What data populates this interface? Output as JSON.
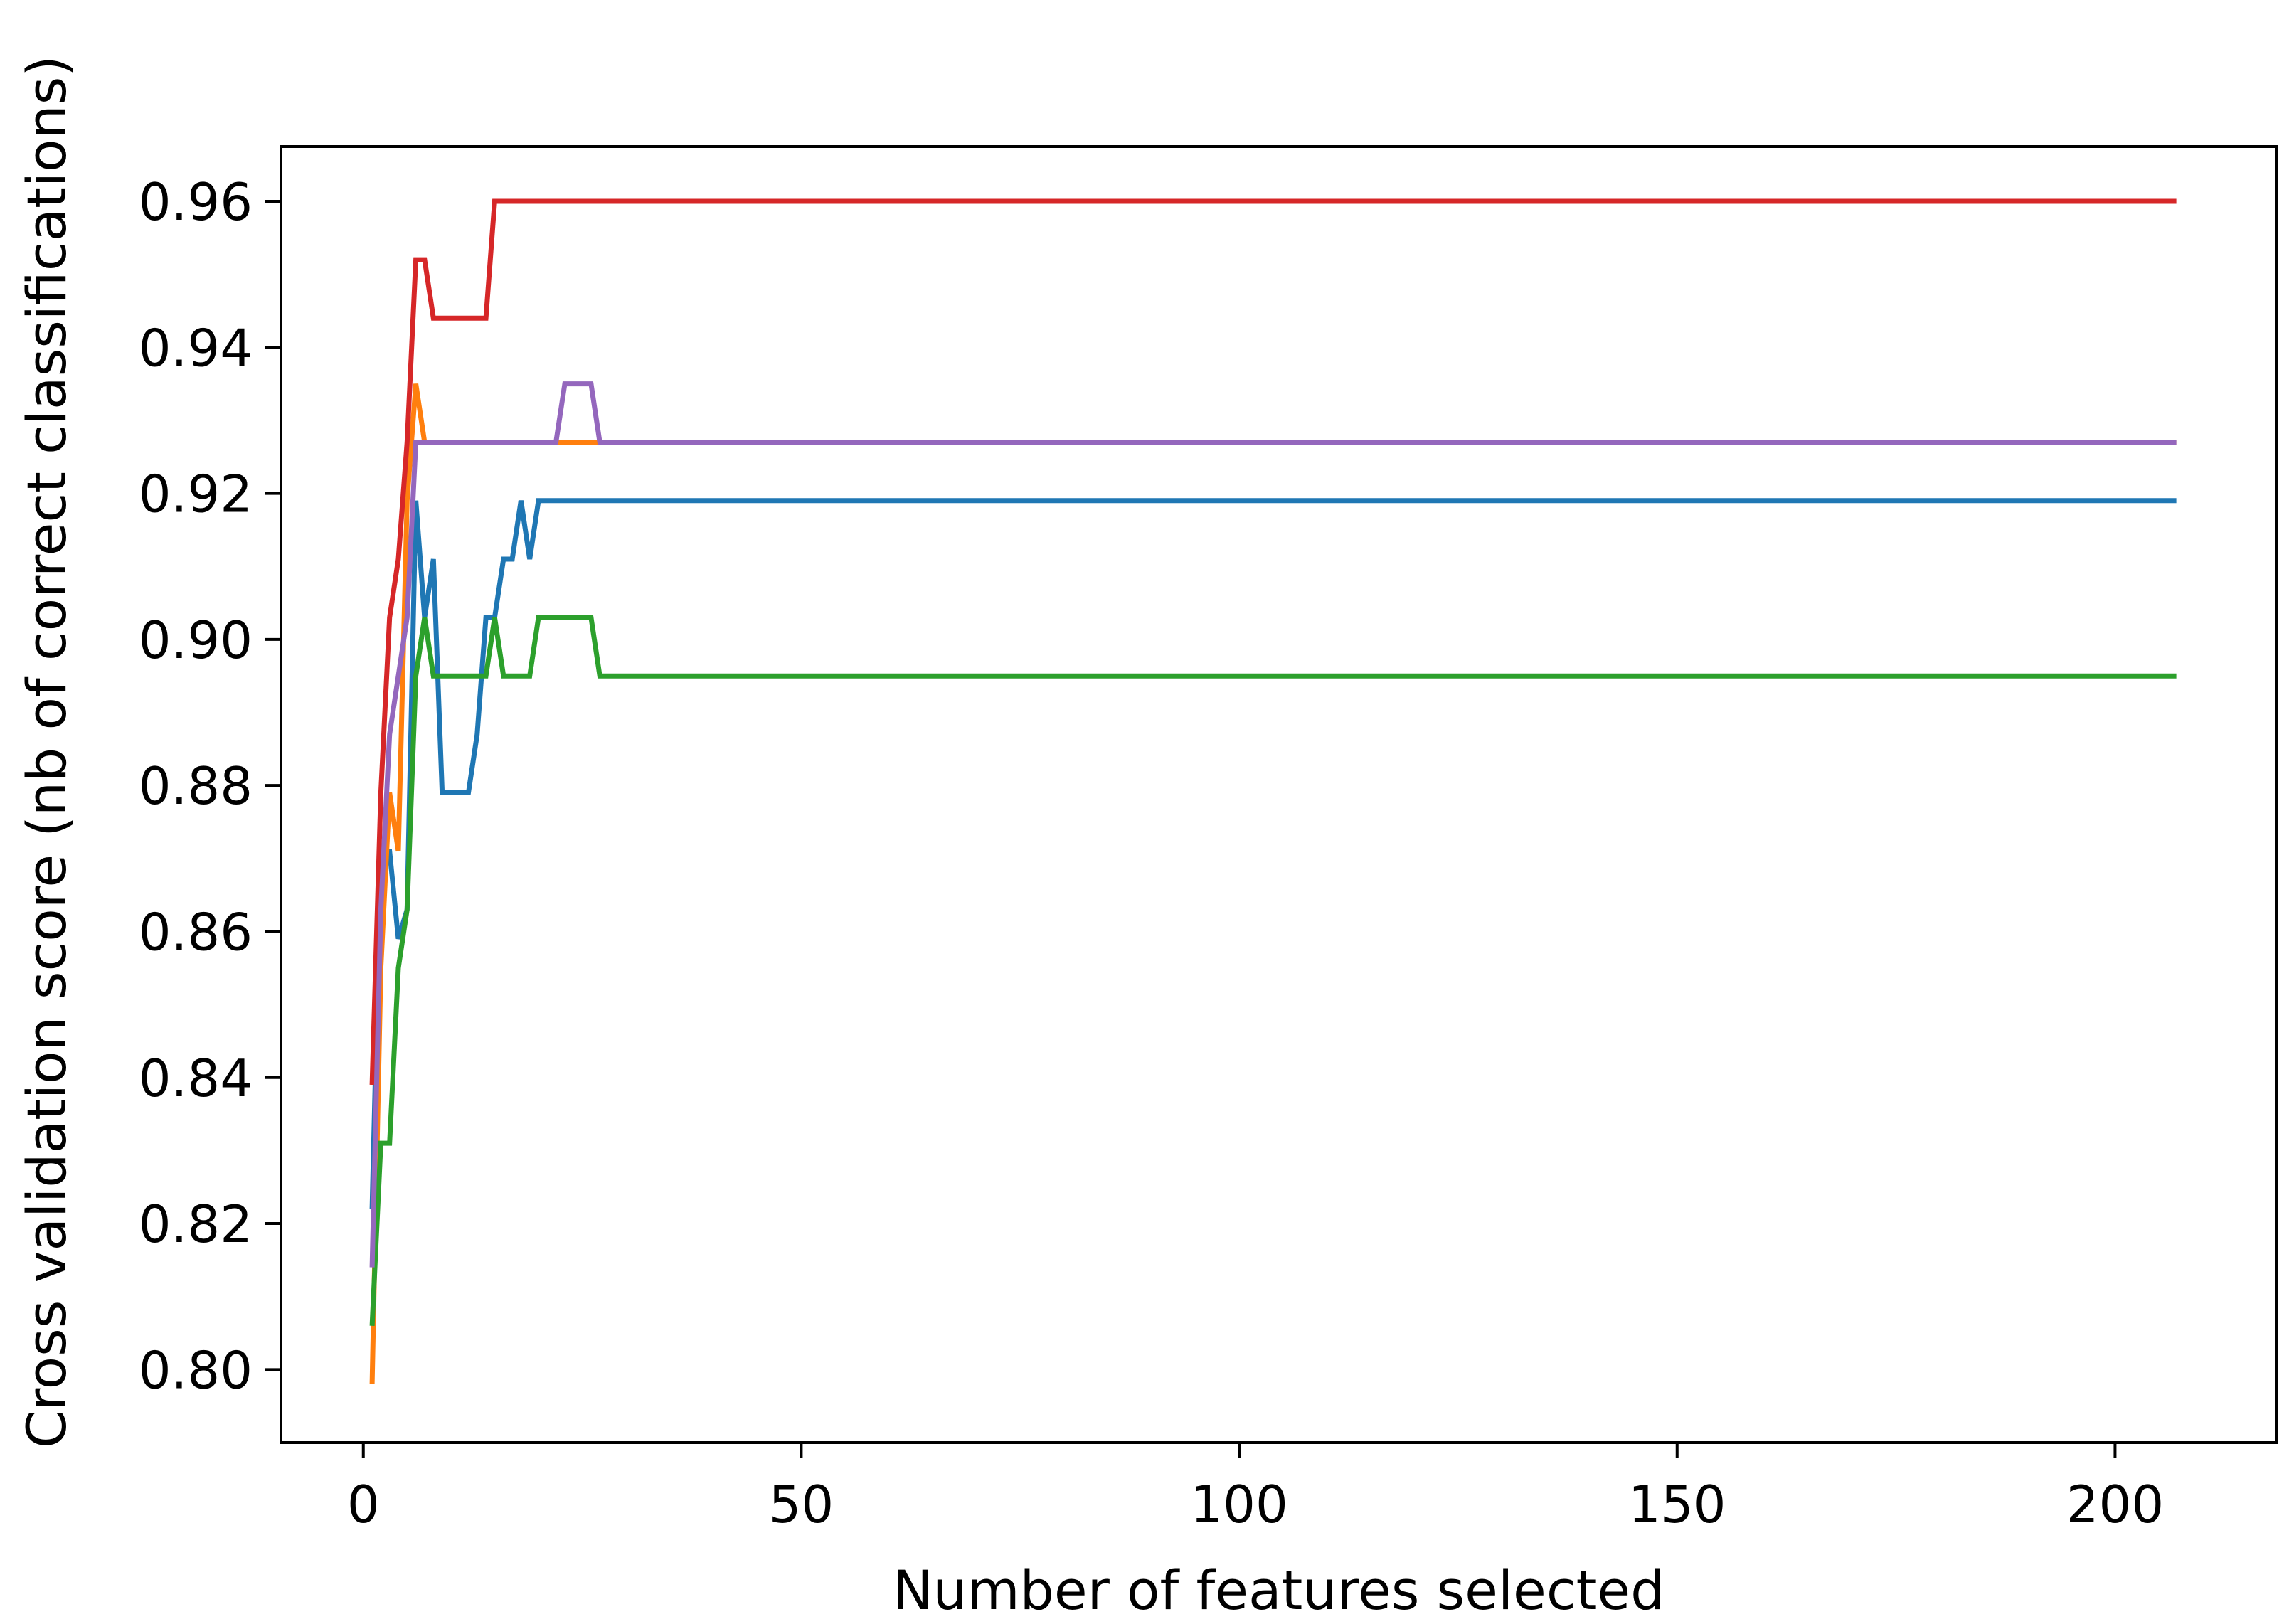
{
  "chart_data": {
    "type": "line",
    "title": "",
    "xlabel": "Number of features selected",
    "ylabel": "Cross validation score (nb of correct classifications)",
    "xlim": [
      -9.4,
      218.4
    ],
    "ylim": [
      0.79,
      0.9675
    ],
    "xticks": [
      0,
      50,
      100,
      150,
      200
    ],
    "xtick_labels": [
      "0",
      "50",
      "100",
      "150",
      "200"
    ],
    "yticks": [
      0.8,
      0.82,
      0.84,
      0.86,
      0.88,
      0.9,
      0.92,
      0.94,
      0.96
    ],
    "ytick_labels": [
      "0.80",
      "0.82",
      "0.84",
      "0.86",
      "0.88",
      "0.90",
      "0.92",
      "0.94",
      "0.96"
    ],
    "grid": false,
    "legend": "none",
    "series": [
      {
        "color": "#1f77b4",
        "x": [
          1,
          2,
          3,
          4,
          5,
          6,
          7,
          8,
          9,
          10,
          11,
          12,
          13,
          14,
          15,
          16,
          17,
          18,
          19,
          20,
          207
        ],
        "y": [
          0.822,
          0.871,
          0.871,
          0.859,
          0.863,
          0.919,
          0.903,
          0.911,
          0.879,
          0.879,
          0.879,
          0.879,
          0.887,
          0.903,
          0.903,
          0.911,
          0.911,
          0.919,
          0.911,
          0.919,
          0.919
        ]
      },
      {
        "color": "#ff7f0e",
        "x": [
          1,
          2,
          3,
          4,
          5,
          6,
          7,
          22,
          23,
          24,
          25,
          26,
          27,
          207
        ],
        "y": [
          0.798,
          0.855,
          0.879,
          0.871,
          0.919,
          0.935,
          0.927,
          0.927,
          0.927,
          0.927,
          0.927,
          0.927,
          0.927,
          0.927
        ]
      },
      {
        "color": "#2ca02c",
        "x": [
          1,
          2,
          3,
          4,
          5,
          6,
          7,
          8,
          9,
          10,
          11,
          12,
          13,
          14,
          15,
          16,
          17,
          18,
          19,
          20,
          21,
          22,
          23,
          24,
          25,
          26,
          27,
          207
        ],
        "y": [
          0.806,
          0.831,
          0.831,
          0.855,
          0.863,
          0.895,
          0.903,
          0.895,
          0.895,
          0.895,
          0.895,
          0.895,
          0.895,
          0.895,
          0.903,
          0.895,
          0.895,
          0.895,
          0.895,
          0.903,
          0.903,
          0.903,
          0.903,
          0.903,
          0.903,
          0.903,
          0.895,
          0.895
        ]
      },
      {
        "color": "#d62728",
        "x": [
          1,
          2,
          3,
          4,
          5,
          6,
          7,
          8,
          9,
          10,
          11,
          12,
          13,
          14,
          15,
          207
        ],
        "y": [
          0.839,
          0.879,
          0.903,
          0.911,
          0.927,
          0.952,
          0.952,
          0.944,
          0.944,
          0.944,
          0.944,
          0.944,
          0.944,
          0.944,
          0.96,
          0.96
        ]
      },
      {
        "color": "#9467bd",
        "x": [
          1,
          2,
          3,
          4,
          5,
          6,
          22,
          23,
          24,
          25,
          26,
          27,
          207
        ],
        "y": [
          0.814,
          0.863,
          0.887,
          0.895,
          0.903,
          0.927,
          0.927,
          0.935,
          0.935,
          0.935,
          0.935,
          0.927,
          0.927
        ]
      }
    ]
  }
}
